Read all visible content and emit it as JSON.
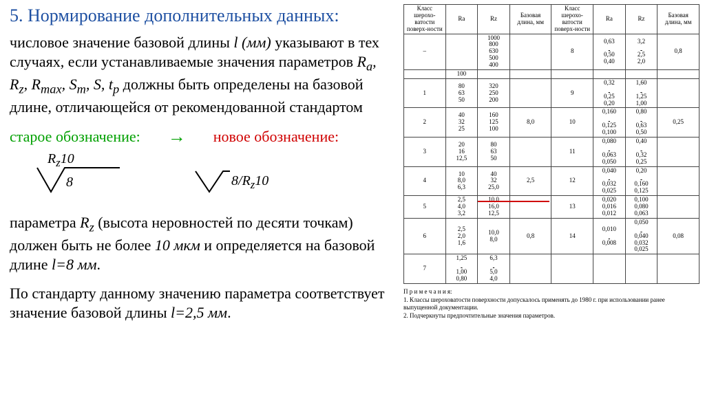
{
  "title": "5. Нормирование дополнительных данных:",
  "para1_a": "числовое значение базовой длины ",
  "para1_l": "l (мм)",
  "para1_b": " указывают в тех случаях, если устанавливаемые значения параметров ",
  "para1_params": "Rₐ, R_z, R_max, S_m, S, t_p",
  "para1_c": " должны быть определены на базовой длине, отличающейся от рекомендованной стандартом",
  "old_label": "старое обозначение:",
  "new_label": "новое обозначение:",
  "arrow": "→",
  "sym_old_top": "R_z10",
  "sym_old_bot": "8",
  "sym_new": "8/R_z10",
  "para2_a": "параметра ",
  "para2_rz": "R_z",
  "para2_b": " (высота неровностей по десяти точкам) должен быть не более ",
  "para2_v1": "10 мкм",
  "para2_c": " и определяется на базовой длине ",
  "para2_v2": "l=8 мм",
  "para2_d": ".",
  "para3_a": "По стандарту данному значению параметра соответствует значение базовой длины ",
  "para3_v": "l=2,5 мм",
  "para3_b": ".",
  "table": {
    "headers": [
      "Класс шерохо-ватости поверх-ности",
      "Ra",
      "Rz",
      "Базовая длина, мм",
      "Класс шерохо-ватости поверх-ности",
      "Ra",
      "Rz",
      "Базовая длина, мм"
    ],
    "rows": [
      [
        "–",
        "",
        "1000\n800\n630\n500\n400",
        "",
        "8",
        "0,63\n—\n0,50\n0,40",
        "3,2\n—\n2,5\n2,0",
        "0,8"
      ],
      [
        "",
        "100",
        "",
        "",
        "",
        "",
        "",
        ""
      ],
      [
        "1",
        "80\n63\n50",
        "320\n250\n200",
        "",
        "9",
        "0,32\n—\n0,25\n0,20",
        "1,60\n—\n1,25\n1,00",
        ""
      ],
      [
        "2",
        "40\n32\n25",
        "160\n125\n100",
        "8,0",
        "10",
        "0,160\n—\n0,125\n0,100",
        "0,80\n—\n0,63\n0,50",
        "0,25"
      ],
      [
        "3",
        "20\n16\n12,5",
        "80\n63\n50",
        "",
        "11",
        "0,080\n—\n0,063\n0,050",
        "0,40\n—\n0,32\n0,25",
        ""
      ],
      [
        "4",
        "10\n8,0\n6,3",
        "40\n32\n25,0",
        "2,5",
        "12",
        "0,040\n—\n0,032\n0,025",
        "0,20\n—\n0,160\n0,125",
        ""
      ],
      [
        "5",
        "2,5\n4,0\n3,2",
        "10,0\n16,0\n12,5",
        "",
        "13",
        "0,020\n0,016\n0,012",
        "0,100\n0,080\n0,063",
        ""
      ],
      [
        "6",
        "2,5\n2,0\n1,6",
        "10,0\n8,0",
        "0,8",
        "14",
        "0,010\n—\n0,008",
        "0,050\n—\n0,040\n0,032\n0,025",
        "0,08"
      ],
      [
        "7",
        "1,25\n—\n1,00\n0,80",
        "6,3\n—\n5,0\n4,0",
        "",
        "",
        "",
        "",
        ""
      ]
    ],
    "notes_title": "П р и м е ч а н и я:",
    "note1": "1. Классы шероховатости поверхности допускалось применять до 1980 г. при использовании ранее выпущенной документации.",
    "note2": "2. Подчеркнуты предпочтительные значения параметров."
  },
  "colors": {
    "title": "#1e50a2",
    "old": "#00a000",
    "new": "#d00000",
    "line": "#444"
  }
}
